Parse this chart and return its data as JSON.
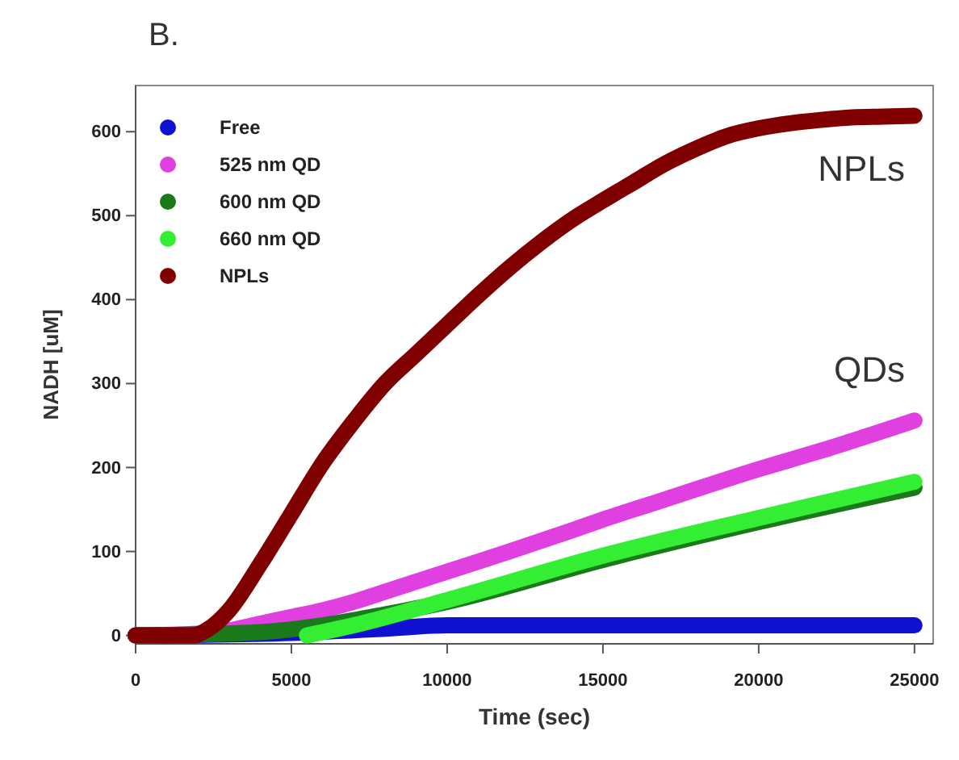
{
  "chart_data": {
    "type": "line",
    "title": "B.",
    "xlabel": "Time (sec)",
    "ylabel": "NADH [uM]",
    "xlim": [
      0,
      25600
    ],
    "xticks": [
      0,
      5000,
      10000,
      15000,
      20000,
      25000
    ],
    "ylim": [
      -10,
      655
    ],
    "yticks": [
      0,
      100,
      200,
      300,
      400,
      500,
      600
    ],
    "grid": false,
    "legend": "top left",
    "line_style": "solid",
    "annotations": [
      "NPLs",
      "QDs"
    ],
    "series": [
      {
        "name": "Free",
        "color": "#1010d0",
        "x": [
          0,
          5000,
          8000,
          10000,
          15000,
          20000,
          25000
        ],
        "values": [
          0,
          3,
          8,
          12,
          12,
          12,
          12
        ]
      },
      {
        "name": "525 nm QD",
        "color": "#e040e0",
        "x": [
          0,
          2000,
          3000,
          4000,
          5000,
          6000,
          7000,
          8000,
          9000,
          10000,
          12000,
          14000,
          15000,
          17000,
          20000,
          22000,
          25000
        ],
        "values": [
          0,
          2,
          6,
          14,
          22,
          30,
          40,
          52,
          64,
          76,
          100,
          125,
          138,
          162,
          198,
          220,
          256
        ]
      },
      {
        "name": "600 nm QD",
        "color": "#1a7a1a",
        "x": [
          0,
          4000,
          6000,
          8000,
          10000,
          15000,
          20000,
          25000
        ],
        "values": [
          0,
          4,
          12,
          25,
          40,
          90,
          135,
          176
        ]
      },
      {
        "name": "660 nm QD",
        "color": "#33ee33",
        "x": [
          5500,
          7000,
          10000,
          15000,
          20000,
          25000
        ],
        "values": [
          0,
          12,
          42,
          95,
          140,
          183
        ]
      },
      {
        "name": "NPLs",
        "color": "#800000",
        "x": [
          0,
          1800,
          2500,
          3000,
          4000,
          5000,
          6000,
          7000,
          8000,
          9000,
          10000,
          11000,
          12000,
          13000,
          14000,
          15000,
          16000,
          17000,
          18000,
          19000,
          20000,
          21000,
          22000,
          23000,
          24000,
          25000
        ],
        "values": [
          0,
          0,
          12,
          30,
          85,
          145,
          205,
          255,
          300,
          335,
          370,
          405,
          438,
          468,
          495,
          518,
          540,
          562,
          580,
          595,
          604,
          610,
          614,
          617,
          618,
          619
        ]
      }
    ]
  }
}
